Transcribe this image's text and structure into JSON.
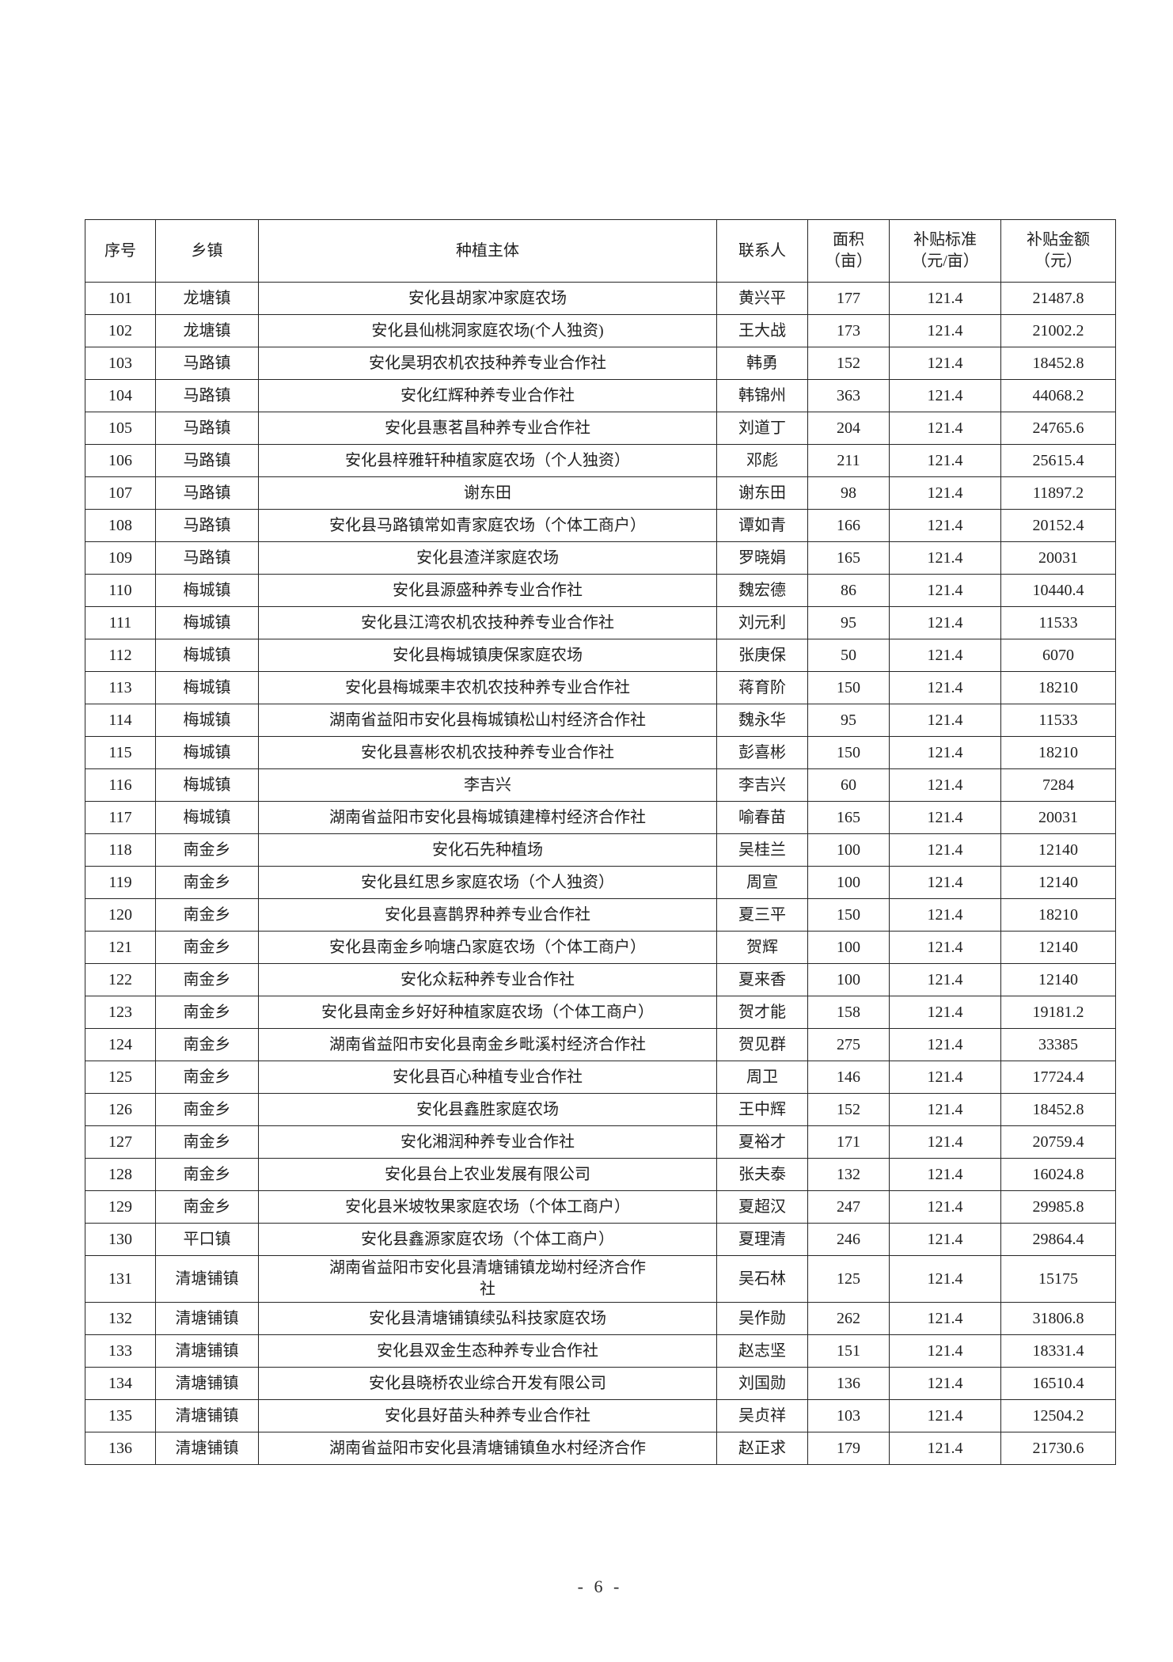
{
  "page": {
    "footer_page_number": "- 6 -"
  },
  "table": {
    "columns": [
      "序号",
      "乡镇",
      "种植主体",
      "联系人",
      "面积\n（亩）",
      "补贴标准\n（元/亩）",
      "补贴金额\n（元）"
    ],
    "rows": [
      {
        "no": "101",
        "town": "龙塘镇",
        "entity": "安化县胡家冲家庭农场",
        "contact": "黄兴平",
        "area": "177",
        "rate": "121.4",
        "amount": "21487.8"
      },
      {
        "no": "102",
        "town": "龙塘镇",
        "entity": "安化县仙桃洞家庭农场(个人独资)",
        "contact": "王大战",
        "area": "173",
        "rate": "121.4",
        "amount": "21002.2"
      },
      {
        "no": "103",
        "town": "马路镇",
        "entity": "安化昊玥农机农技种养专业合作社",
        "contact": "韩勇",
        "area": "152",
        "rate": "121.4",
        "amount": "18452.8"
      },
      {
        "no": "104",
        "town": "马路镇",
        "entity": "安化红辉种养专业合作社",
        "contact": "韩锦州",
        "area": "363",
        "rate": "121.4",
        "amount": "44068.2"
      },
      {
        "no": "105",
        "town": "马路镇",
        "entity": "安化县惠茗昌种养专业合作社",
        "contact": "刘道丁",
        "area": "204",
        "rate": "121.4",
        "amount": "24765.6"
      },
      {
        "no": "106",
        "town": "马路镇",
        "entity": "安化县梓雅轩种植家庭农场（个人独资）",
        "contact": "邓彪",
        "area": "211",
        "rate": "121.4",
        "amount": "25615.4"
      },
      {
        "no": "107",
        "town": "马路镇",
        "entity": "谢东田",
        "contact": "谢东田",
        "area": "98",
        "rate": "121.4",
        "amount": "11897.2"
      },
      {
        "no": "108",
        "town": "马路镇",
        "entity": "安化县马路镇常如青家庭农场（个体工商户）",
        "contact": "谭如青",
        "area": "166",
        "rate": "121.4",
        "amount": "20152.4"
      },
      {
        "no": "109",
        "town": "马路镇",
        "entity": "安化县渣洋家庭农场",
        "contact": "罗晓娟",
        "area": "165",
        "rate": "121.4",
        "amount": "20031"
      },
      {
        "no": "110",
        "town": "梅城镇",
        "entity": "安化县源盛种养专业合作社",
        "contact": "魏宏德",
        "area": "86",
        "rate": "121.4",
        "amount": "10440.4"
      },
      {
        "no": "111",
        "town": "梅城镇",
        "entity": "安化县江湾农机农技种养专业合作社",
        "contact": "刘元利",
        "area": "95",
        "rate": "121.4",
        "amount": "11533"
      },
      {
        "no": "112",
        "town": "梅城镇",
        "entity": "安化县梅城镇庚保家庭农场",
        "contact": "张庚保",
        "area": "50",
        "rate": "121.4",
        "amount": "6070"
      },
      {
        "no": "113",
        "town": "梅城镇",
        "entity": "安化县梅城栗丰农机农技种养专业合作社",
        "contact": "蒋育阶",
        "area": "150",
        "rate": "121.4",
        "amount": "18210"
      },
      {
        "no": "114",
        "town": "梅城镇",
        "entity": "湖南省益阳市安化县梅城镇松山村经济合作社",
        "contact": "魏永华",
        "area": "95",
        "rate": "121.4",
        "amount": "11533"
      },
      {
        "no": "115",
        "town": "梅城镇",
        "entity": "安化县喜彬农机农技种养专业合作社",
        "contact": "彭喜彬",
        "area": "150",
        "rate": "121.4",
        "amount": "18210"
      },
      {
        "no": "116",
        "town": "梅城镇",
        "entity": "李吉兴",
        "contact": "李吉兴",
        "area": "60",
        "rate": "121.4",
        "amount": "7284"
      },
      {
        "no": "117",
        "town": "梅城镇",
        "entity": "湖南省益阳市安化县梅城镇建樟村经济合作社",
        "contact": "喻春苗",
        "area": "165",
        "rate": "121.4",
        "amount": "20031"
      },
      {
        "no": "118",
        "town": "南金乡",
        "entity": "安化石先种植场",
        "contact": "吴桂兰",
        "area": "100",
        "rate": "121.4",
        "amount": "12140"
      },
      {
        "no": "119",
        "town": "南金乡",
        "entity": "安化县红思乡家庭农场（个人独资）",
        "contact": "周宣",
        "area": "100",
        "rate": "121.4",
        "amount": "12140"
      },
      {
        "no": "120",
        "town": "南金乡",
        "entity": "安化县喜鹊界种养专业合作社",
        "contact": "夏三平",
        "area": "150",
        "rate": "121.4",
        "amount": "18210"
      },
      {
        "no": "121",
        "town": "南金乡",
        "entity": "安化县南金乡响塘凸家庭农场（个体工商户）",
        "contact": "贺辉",
        "area": "100",
        "rate": "121.4",
        "amount": "12140"
      },
      {
        "no": "122",
        "town": "南金乡",
        "entity": "安化众耘种养专业合作社",
        "contact": "夏来香",
        "area": "100",
        "rate": "121.4",
        "amount": "12140"
      },
      {
        "no": "123",
        "town": "南金乡",
        "entity": "安化县南金乡好好种植家庭农场（个体工商户）",
        "contact": "贺才能",
        "area": "158",
        "rate": "121.4",
        "amount": "19181.2"
      },
      {
        "no": "124",
        "town": "南金乡",
        "entity": "湖南省益阳市安化县南金乡毗溪村经济合作社",
        "contact": "贺见群",
        "area": "275",
        "rate": "121.4",
        "amount": "33385"
      },
      {
        "no": "125",
        "town": "南金乡",
        "entity": "安化县百心种植专业合作社",
        "contact": "周卫",
        "area": "146",
        "rate": "121.4",
        "amount": "17724.4"
      },
      {
        "no": "126",
        "town": "南金乡",
        "entity": "安化县鑫胜家庭农场",
        "contact": "王中辉",
        "area": "152",
        "rate": "121.4",
        "amount": "18452.8"
      },
      {
        "no": "127",
        "town": "南金乡",
        "entity": "安化湘润种养专业合作社",
        "contact": "夏裕才",
        "area": "171",
        "rate": "121.4",
        "amount": "20759.4"
      },
      {
        "no": "128",
        "town": "南金乡",
        "entity": "安化县台上农业发展有限公司",
        "contact": "张夫泰",
        "area": "132",
        "rate": "121.4",
        "amount": "16024.8"
      },
      {
        "no": "129",
        "town": "南金乡",
        "entity": "安化县米坡牧果家庭农场（个体工商户）",
        "contact": "夏超汉",
        "area": "247",
        "rate": "121.4",
        "amount": "29985.8"
      },
      {
        "no": "130",
        "town": "平口镇",
        "entity": "安化县鑫源家庭农场（个体工商户）",
        "contact": "夏理清",
        "area": "246",
        "rate": "121.4",
        "amount": "29864.4"
      },
      {
        "no": "131",
        "town": "清塘铺镇",
        "entity": "湖南省益阳市安化县清塘铺镇龙坳村经济合作\n社",
        "contact": "吴石林",
        "area": "125",
        "rate": "121.4",
        "amount": "15175"
      },
      {
        "no": "132",
        "town": "清塘铺镇",
        "entity": "安化县清塘铺镇续弘科技家庭农场",
        "contact": "吴作勋",
        "area": "262",
        "rate": "121.4",
        "amount": "31806.8"
      },
      {
        "no": "133",
        "town": "清塘铺镇",
        "entity": "安化县双金生态种养专业合作社",
        "contact": "赵志坚",
        "area": "151",
        "rate": "121.4",
        "amount": "18331.4"
      },
      {
        "no": "134",
        "town": "清塘铺镇",
        "entity": "安化县晓桥农业综合开发有限公司",
        "contact": "刘国勋",
        "area": "136",
        "rate": "121.4",
        "amount": "16510.4"
      },
      {
        "no": "135",
        "town": "清塘铺镇",
        "entity": "安化县好苗头种养专业合作社",
        "contact": "吴贞祥",
        "area": "103",
        "rate": "121.4",
        "amount": "12504.2"
      },
      {
        "no": "136",
        "town": "清塘铺镇",
        "entity": "湖南省益阳市安化县清塘铺镇鱼水村经济合作",
        "contact": "赵正求",
        "area": "179",
        "rate": "121.4",
        "amount": "21730.6"
      }
    ]
  }
}
